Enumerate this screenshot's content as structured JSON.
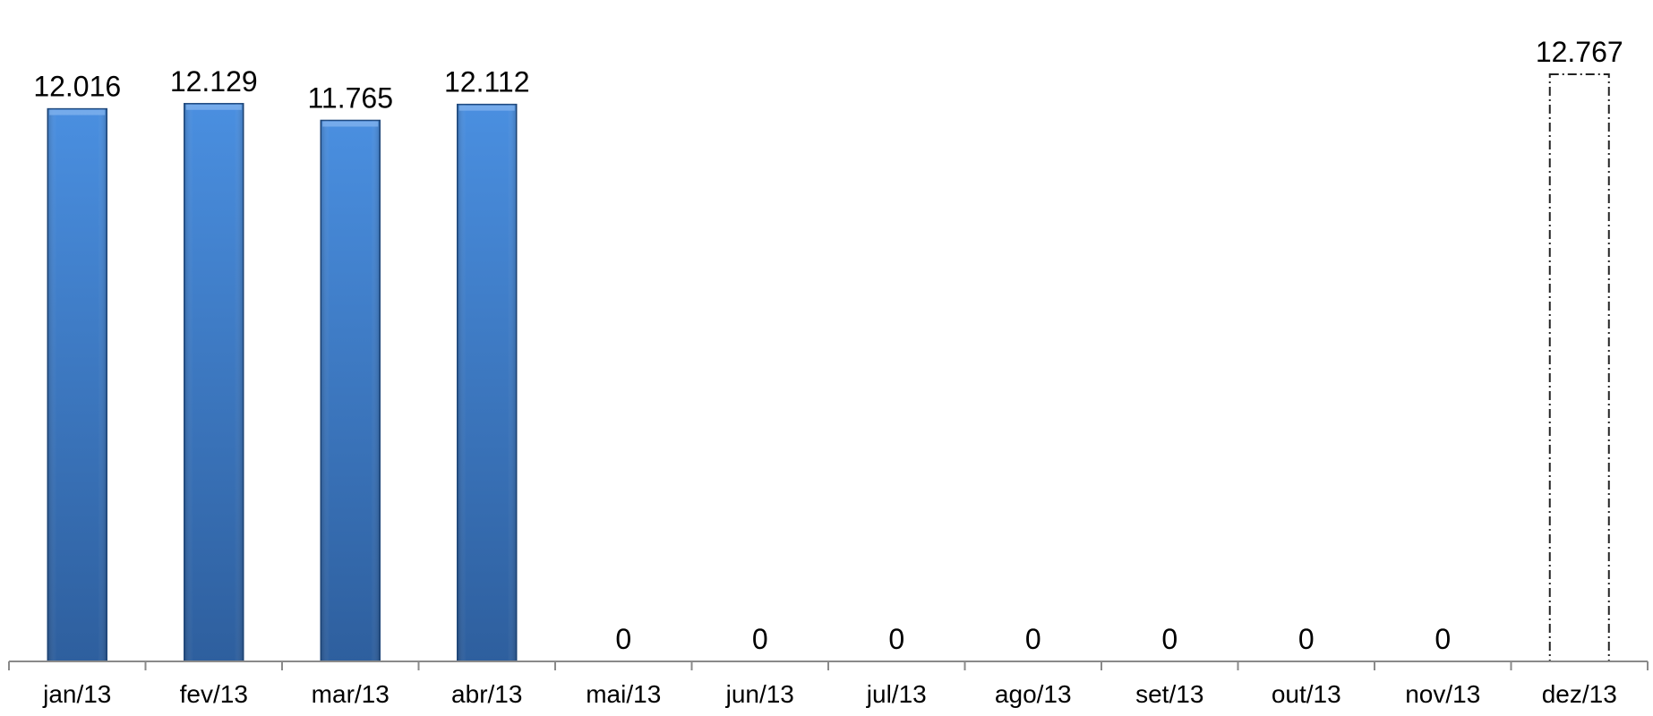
{
  "chart_data": {
    "type": "bar",
    "categories": [
      "jan/13",
      "fev/13",
      "mar/13",
      "abr/13",
      "mai/13",
      "jun/13",
      "jul/13",
      "ago/13",
      "set/13",
      "out/13",
      "nov/13",
      "dez/13"
    ],
    "series": [
      {
        "values": [
          12016,
          12129,
          11765,
          12112,
          0,
          0,
          0,
          0,
          0,
          0,
          0,
          12767
        ],
        "data_labels": [
          "12.016",
          "12.129",
          "11.765",
          "12.112",
          "0",
          "0",
          "0",
          "0",
          "0",
          "0",
          "0",
          "12.767"
        ],
        "styles": [
          "solid",
          "solid",
          "solid",
          "solid",
          "solid",
          "solid",
          "solid",
          "solid",
          "solid",
          "solid",
          "solid",
          "dash-dot-outline"
        ]
      }
    ],
    "title": "",
    "xlabel": "",
    "ylabel": "",
    "ylim": [
      0,
      12767
    ],
    "grid": false,
    "legend": "none",
    "colors": {
      "bar_fill_top": "#4a8fe0",
      "bar_fill_bottom": "#2e5f9e",
      "bar_edge": "#1f4a80",
      "outline_bar": "#222222",
      "axis": "#8a8a8a"
    }
  }
}
